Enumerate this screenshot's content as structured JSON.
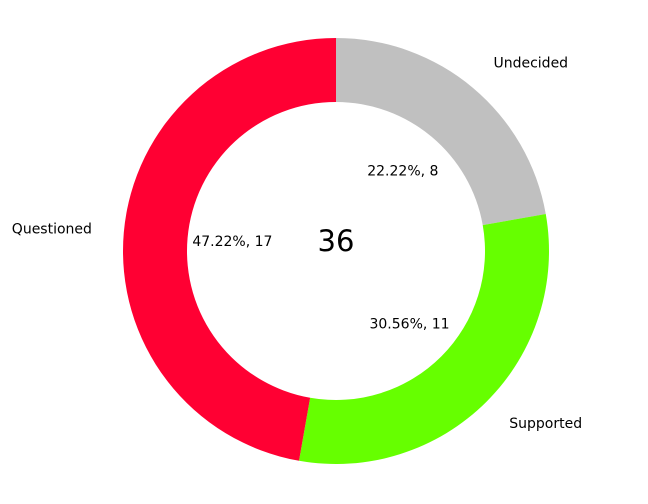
{
  "chart_data": {
    "type": "pie",
    "variant": "donut",
    "center_text": "36",
    "slices": [
      {
        "label": "Undecided",
        "value": 8,
        "percent_label": "22.22%, 8",
        "color": "#c0c0c0"
      },
      {
        "label": "Supported",
        "value": 11,
        "percent_label": "30.56%, 11",
        "color": "#66ff00"
      },
      {
        "label": "Questioned",
        "value": 17,
        "percent_label": "47.22%, 17",
        "color": "#ff0033"
      }
    ],
    "start_angle_deg": 90,
    "direction": "clockwise",
    "legend": "none",
    "grid": false
  }
}
